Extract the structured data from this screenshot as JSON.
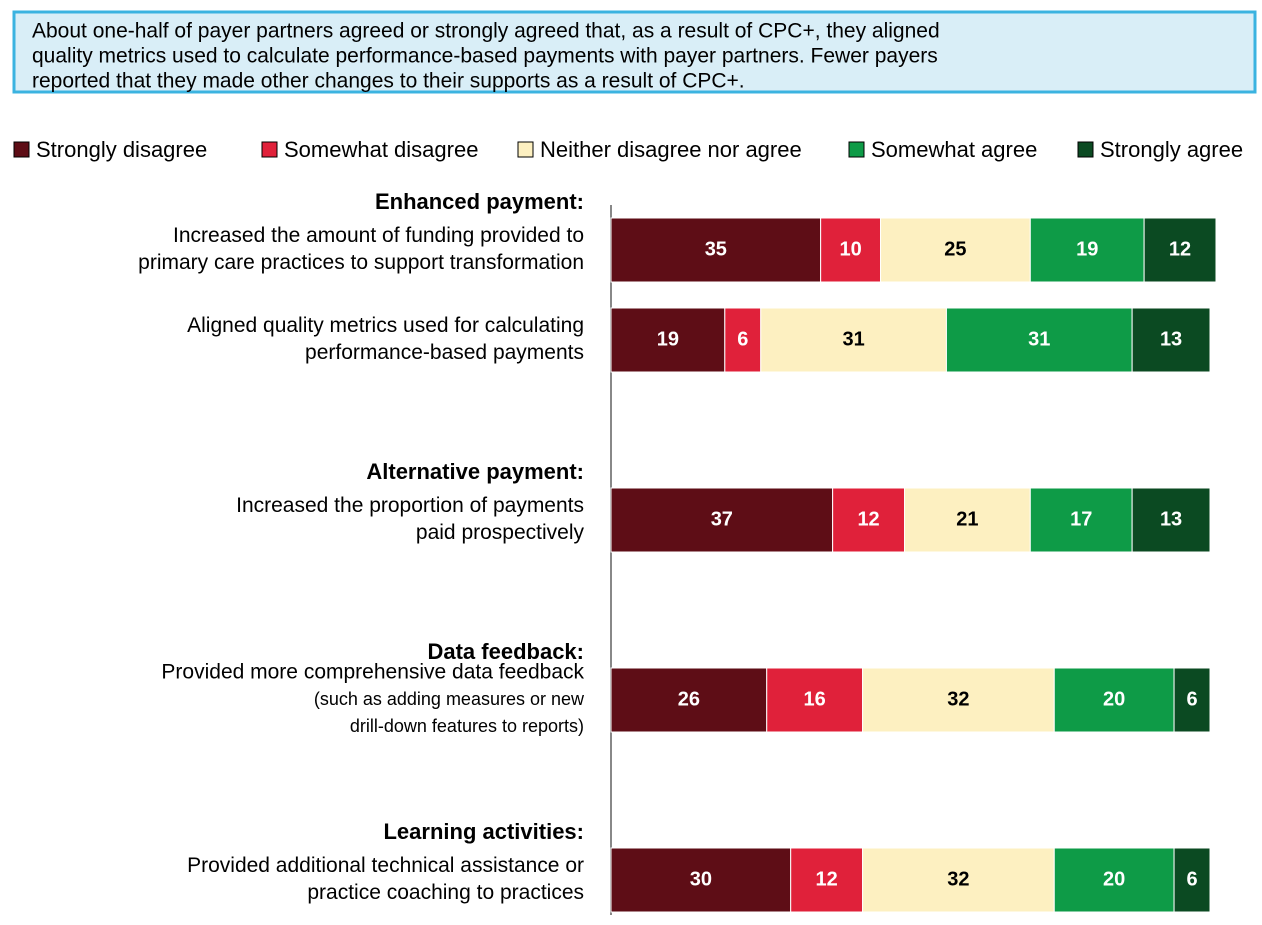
{
  "chart_data": {
    "type": "stacked_barh",
    "title_lines": [
      "About one-half of payer partners agreed or strongly agreed that, as a result of CPC+, they aligned",
      "quality metrics used to calculate performance-based payments with payer partners. Fewer payers",
      "reported that they made other changes to their supports as a result of CPC+."
    ],
    "group_labels": [
      "Enhanced payment:",
      null,
      "Alternative payment:",
      "Data feedback:",
      "Learning activities:"
    ],
    "categories": [
      [
        "Increased the amount of funding provided to",
        "primary care practices to support transformation"
      ],
      [
        "Aligned quality metrics used for calculating",
        "performance-based payments"
      ],
      [
        "Increased the proportion of payments",
        "paid prospectively"
      ],
      [
        "Provided more comprehensive data feedback",
        "(such as adding measures or new",
        "drill-down features to reports)"
      ],
      [
        "Provided additional technical assistance or",
        "practice coaching to practices"
      ]
    ],
    "series": [
      {
        "name": "Strongly disagree",
        "color": "#5e0d16",
        "values": [
          35,
          19,
          37,
          26,
          30
        ]
      },
      {
        "name": "Somewhat disagree",
        "color": "#e0213a",
        "values": [
          10,
          6,
          12,
          16,
          12
        ]
      },
      {
        "name": "Neither disagree nor agree",
        "color": "#fdf0c1",
        "values": [
          25,
          31,
          21,
          32,
          32
        ]
      },
      {
        "name": "Somewhat agree",
        "color": "#0e9b47",
        "values": [
          19,
          31,
          17,
          20,
          20
        ]
      },
      {
        "name": "Strongly agree",
        "color": "#0b4a22",
        "values": [
          12,
          13,
          13,
          6,
          6
        ]
      }
    ],
    "xlim": [
      0,
      100
    ],
    "legend": "top"
  }
}
